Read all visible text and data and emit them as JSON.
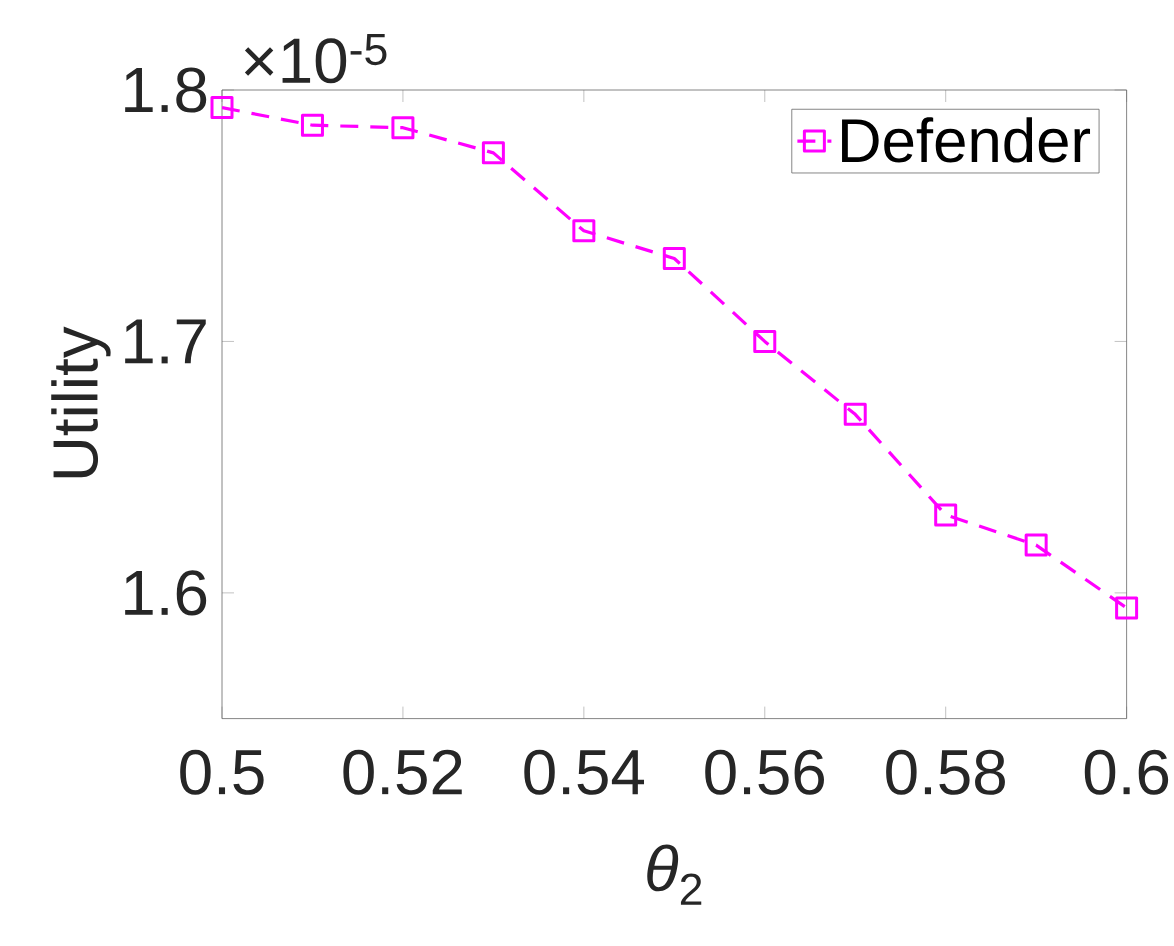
{
  "chart_data": {
    "type": "line",
    "xlabel": "*θ*$_{2}$",
    "ylabel": "Utility",
    "annotations": [
      "×10$^{-5}$"
    ],
    "x": [
      0.5,
      0.51,
      0.52,
      0.53,
      0.54,
      0.55,
      0.56,
      0.57,
      0.58,
      0.59,
      0.6
    ],
    "series": [
      {
        "name": "Defender",
        "color": "#ff00ff",
        "values": [
          1.793,
          1.786,
          1.785,
          1.775,
          1.744,
          1.733,
          1.7,
          1.671,
          1.631,
          1.619,
          1.594
        ]
      }
    ],
    "xlim": [
      0.5,
      0.6
    ],
    "ylim": [
      1.55,
      1.8
    ],
    "xticks": [
      0.5,
      0.52,
      0.54,
      0.56,
      0.58,
      0.6
    ],
    "yticks": [
      1.6,
      1.7,
      1.8
    ],
    "grid": false,
    "legend": "top right",
    "marker": "square",
    "line_style": "dashed"
  }
}
